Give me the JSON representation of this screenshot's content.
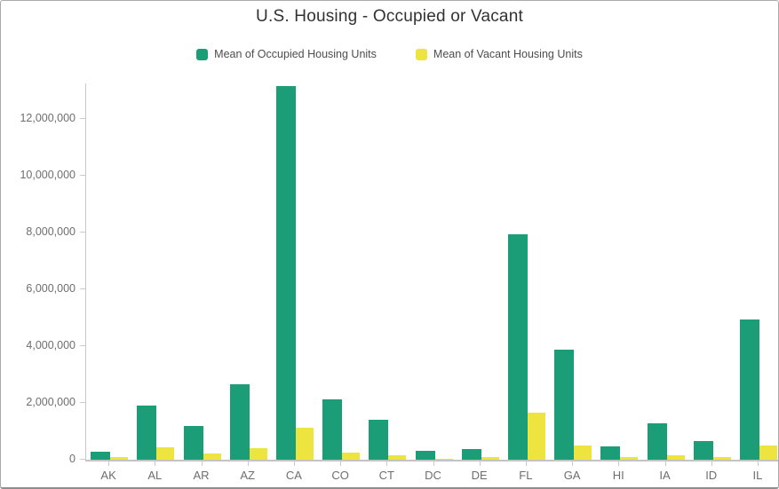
{
  "chart": {
    "title": "U.S. Housing - Occupied or Vacant"
  },
  "chart_data": {
    "type": "bar",
    "title": "U.S. Housing - Occupied or Vacant",
    "categories": [
      "AK",
      "AL",
      "AR",
      "AZ",
      "CA",
      "CO",
      "CT",
      "DC",
      "DE",
      "FL",
      "GA",
      "HI",
      "IA",
      "ID",
      "IL"
    ],
    "series": [
      {
        "name": "Mean of Occupied Housing Units",
        "color": "#1B9E77",
        "values": [
          270000,
          1900000,
          1180000,
          2650000,
          13150000,
          2130000,
          1410000,
          300000,
          380000,
          7930000,
          3860000,
          470000,
          1290000,
          660000,
          4930000
        ]
      },
      {
        "name": "Mean of Vacant Housing Units",
        "color": "#EDE43F",
        "values": [
          90000,
          430000,
          220000,
          420000,
          1140000,
          240000,
          170000,
          30000,
          90000,
          1670000,
          510000,
          100000,
          170000,
          100000,
          510000
        ]
      }
    ],
    "xlabel": "",
    "ylabel": "",
    "y_axis": {
      "ticks": [
        0,
        2000000,
        4000000,
        6000000,
        8000000,
        10000000,
        12000000
      ],
      "tick_labels": [
        "0",
        "2,000,000",
        "4,000,000",
        "6,000,000",
        "8,000,000",
        "10,000,000",
        "12,000,000"
      ],
      "range": [
        0,
        13250000
      ]
    },
    "legend_position": "top",
    "grid": false,
    "axis_color": "#c9c9c9",
    "label_color": "#6e6e6e"
  }
}
